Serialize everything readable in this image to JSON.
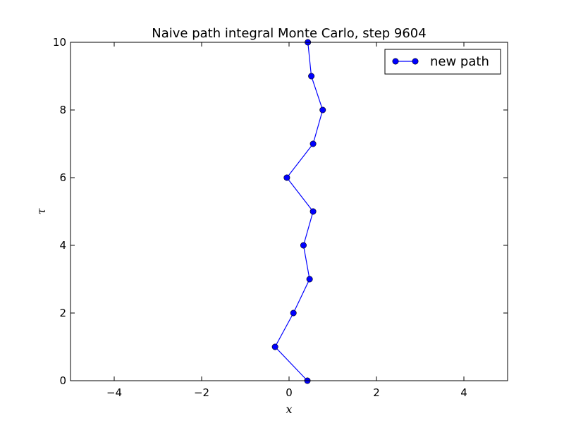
{
  "chart_data": {
    "type": "line",
    "title": "Naive path integral Monte Carlo, step 9604",
    "xlabel": "x",
    "ylabel": "τ",
    "xlim": [
      -5,
      5
    ],
    "ylim": [
      0,
      10
    ],
    "xticks": [
      -4,
      -2,
      0,
      2,
      4
    ],
    "xtick_labels": [
      "−4",
      "−2",
      "0",
      "2",
      "4"
    ],
    "yticks": [
      0,
      2,
      4,
      6,
      8,
      10
    ],
    "ytick_labels": [
      "0",
      "2",
      "4",
      "6",
      "8",
      "10"
    ],
    "grid": false,
    "legend_position": "top-right",
    "series": [
      {
        "name": "new path",
        "color": "#0000ff",
        "marker": "circle",
        "x": [
          0.42,
          -0.32,
          0.1,
          0.47,
          0.33,
          0.55,
          -0.05,
          0.55,
          0.77,
          0.51,
          0.43
        ],
        "y": [
          0,
          1,
          2,
          3,
          4,
          5,
          6,
          7,
          8,
          9,
          10
        ]
      }
    ]
  }
}
